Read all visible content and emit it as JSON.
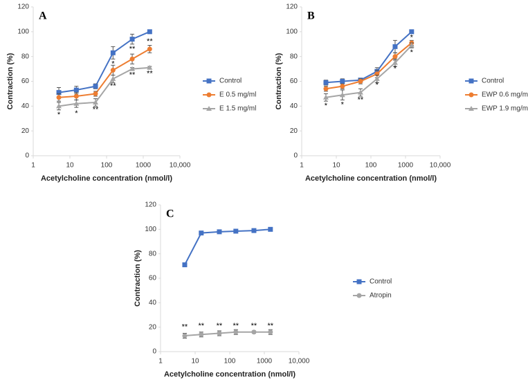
{
  "chart_data": [
    {
      "type": "line",
      "label": "A",
      "xlog": true,
      "xlabel": "Acetylcholine concentration (nmol/l)",
      "ylabel": "Contraction (%)",
      "xlim": [
        1,
        10000
      ],
      "xticks": [
        1,
        10,
        100,
        1000,
        {
          "value": 10000,
          "label": "10,000"
        }
      ],
      "ylim": [
        0,
        120
      ],
      "yticks": [
        0,
        20,
        40,
        60,
        80,
        100,
        120
      ],
      "x": [
        5,
        15,
        50,
        150,
        500,
        1500
      ],
      "series": [
        {
          "name": "Control",
          "color": "#4472c4",
          "marker": "square",
          "values": [
            51,
            53,
            56,
            83,
            94,
            100
          ],
          "errors": [
            4,
            3,
            2,
            5,
            4,
            0
          ]
        },
        {
          "name": "E 0.5 mg/ml",
          "color": "#ed7d31",
          "marker": "circle",
          "values": [
            47,
            48,
            50,
            69,
            78,
            86
          ],
          "errors": [
            3,
            3,
            2,
            4,
            4,
            3
          ]
        },
        {
          "name": "E 1.5 mg/ml",
          "color": "#a5a5a5",
          "marker": "triangle",
          "values": [
            40,
            42,
            43,
            62,
            70,
            71
          ],
          "errors": [
            3,
            3,
            3,
            3,
            1,
            1
          ]
        }
      ],
      "annotations": [
        {
          "text": "*",
          "x": 5,
          "y": 33
        },
        {
          "text": "*",
          "x": 15,
          "y": 34
        },
        {
          "text": "**",
          "x": 50,
          "y": 37
        },
        {
          "text": "*",
          "x": 150,
          "y": 74
        },
        {
          "text": "**",
          "x": 150,
          "y": 56
        },
        {
          "text": "**",
          "x": 500,
          "y": 86
        },
        {
          "text": "**",
          "x": 500,
          "y": 65
        },
        {
          "text": "**",
          "x": 1500,
          "y": 92
        },
        {
          "text": "**",
          "x": 1500,
          "y": 66
        }
      ]
    },
    {
      "type": "line",
      "label": "B",
      "xlog": true,
      "xlabel": "Acetylcholine concentration (nmol/l)",
      "ylabel": "Contraction (%)",
      "xlim": [
        1,
        10000
      ],
      "xticks": [
        1,
        10,
        100,
        1000,
        {
          "value": 10000,
          "label": "10,000"
        }
      ],
      "ylim": [
        0,
        120
      ],
      "yticks": [
        0,
        20,
        40,
        60,
        80,
        100,
        120
      ],
      "x": [
        5,
        15,
        50,
        150,
        500,
        1500
      ],
      "series": [
        {
          "name": "Control",
          "color": "#4472c4",
          "marker": "square",
          "values": [
            59,
            60,
            61,
            68,
            88,
            100
          ],
          "errors": [
            2,
            2,
            1,
            3,
            5,
            1
          ]
        },
        {
          "name": "EWP 0.6 mg/m",
          "color": "#ed7d31",
          "marker": "circle",
          "values": [
            54,
            56,
            60,
            66,
            80,
            91
          ],
          "errors": [
            2,
            2,
            2,
            3,
            3,
            2
          ]
        },
        {
          "name": "EWP 1.9 mg/m",
          "color": "#a5a5a5",
          "marker": "triangle",
          "values": [
            47,
            49,
            51,
            62,
            75,
            89
          ],
          "errors": [
            3,
            4,
            3,
            3,
            3,
            2
          ]
        }
      ],
      "annotations": [
        {
          "text": "*",
          "x": 5,
          "y": 40
        },
        {
          "text": "*",
          "x": 15,
          "y": 41
        },
        {
          "text": "**",
          "x": 50,
          "y": 45
        },
        {
          "text": "*",
          "x": 150,
          "y": 57
        },
        {
          "text": "*",
          "x": 500,
          "y": 70
        },
        {
          "text": "*",
          "x": 1500,
          "y": 95
        },
        {
          "text": "*",
          "x": 1500,
          "y": 83
        }
      ]
    },
    {
      "type": "line",
      "label": "C",
      "xlog": true,
      "xlabel": "Acetylcholine concentration (nmol/l)",
      "ylabel": "Contraction (%)",
      "xlim": [
        1,
        10000
      ],
      "xticks": [
        1,
        10,
        100,
        1000,
        {
          "value": 10000,
          "label": "10,000"
        }
      ],
      "ylim": [
        0,
        120
      ],
      "yticks": [
        0,
        20,
        40,
        60,
        80,
        100,
        120
      ],
      "x": [
        5,
        15,
        50,
        150,
        500,
        1500
      ],
      "series": [
        {
          "name": "Control",
          "color": "#4472c4",
          "marker": "square",
          "values": [
            71,
            97,
            98,
            98.5,
            99,
            100
          ],
          "errors": [
            0,
            0,
            0,
            0,
            0,
            0
          ]
        },
        {
          "name": "Atropin",
          "color": "#a5a5a5",
          "marker": "circle",
          "values": [
            13,
            14,
            15,
            16,
            16,
            16
          ],
          "errors": [
            2,
            2,
            2,
            2,
            1,
            2
          ]
        }
      ],
      "annotations": [
        {
          "text": "**",
          "x": 5,
          "y": 20
        },
        {
          "text": "**",
          "x": 15,
          "y": 21
        },
        {
          "text": "**",
          "x": 50,
          "y": 21
        },
        {
          "text": "**",
          "x": 150,
          "y": 21
        },
        {
          "text": "**",
          "x": 500,
          "y": 21
        },
        {
          "text": "**",
          "x": 1500,
          "y": 21
        }
      ]
    }
  ]
}
